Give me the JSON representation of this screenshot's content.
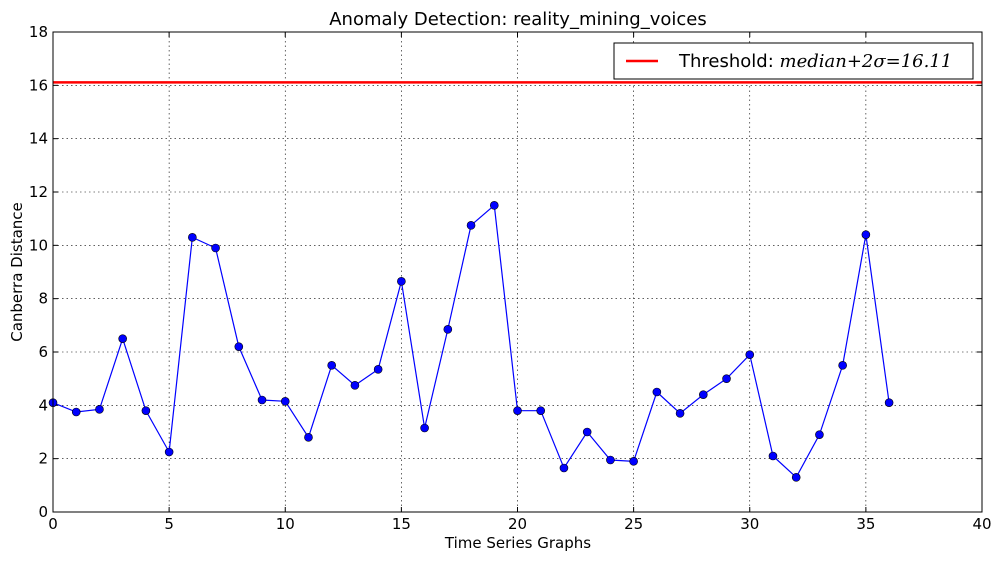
{
  "chart_data": {
    "type": "line",
    "title": "Anomaly Detection: reality_mining_voices",
    "xlabel": "Time Series Graphs",
    "ylabel": "Canberra Distance",
    "xlim": [
      0,
      40
    ],
    "ylim": [
      0,
      18
    ],
    "xticks": [
      0,
      5,
      10,
      15,
      20,
      25,
      30,
      35,
      40
    ],
    "yticks": [
      0,
      2,
      4,
      6,
      8,
      10,
      12,
      14,
      16,
      18
    ],
    "grid": true,
    "legend_position": "top-right",
    "series": [
      {
        "color": "#0000ff",
        "marker": "circle",
        "x": [
          0,
          1,
          2,
          3,
          4,
          5,
          6,
          7,
          8,
          9,
          10,
          11,
          12,
          13,
          14,
          15,
          16,
          17,
          18,
          19,
          20,
          21,
          22,
          23,
          24,
          25,
          26,
          27,
          28,
          29,
          30,
          31,
          32,
          33,
          34,
          35,
          36
        ],
        "values": [
          4.1,
          3.75,
          3.85,
          6.5,
          3.8,
          2.25,
          10.3,
          9.9,
          6.2,
          4.2,
          4.15,
          2.8,
          5.5,
          4.75,
          5.35,
          8.65,
          3.15,
          6.85,
          10.75,
          11.5,
          3.8,
          3.8,
          1.65,
          3.0,
          1.95,
          1.9,
          4.5,
          3.7,
          4.4,
          5.0,
          5.9,
          2.1,
          1.3,
          2.9,
          5.5,
          10.4,
          4.1
        ]
      }
    ],
    "threshold": {
      "value": 16.11,
      "color": "#ff0000",
      "legend_label": "Threshold: ",
      "legend_formula": "median+2σ=16.11"
    }
  }
}
